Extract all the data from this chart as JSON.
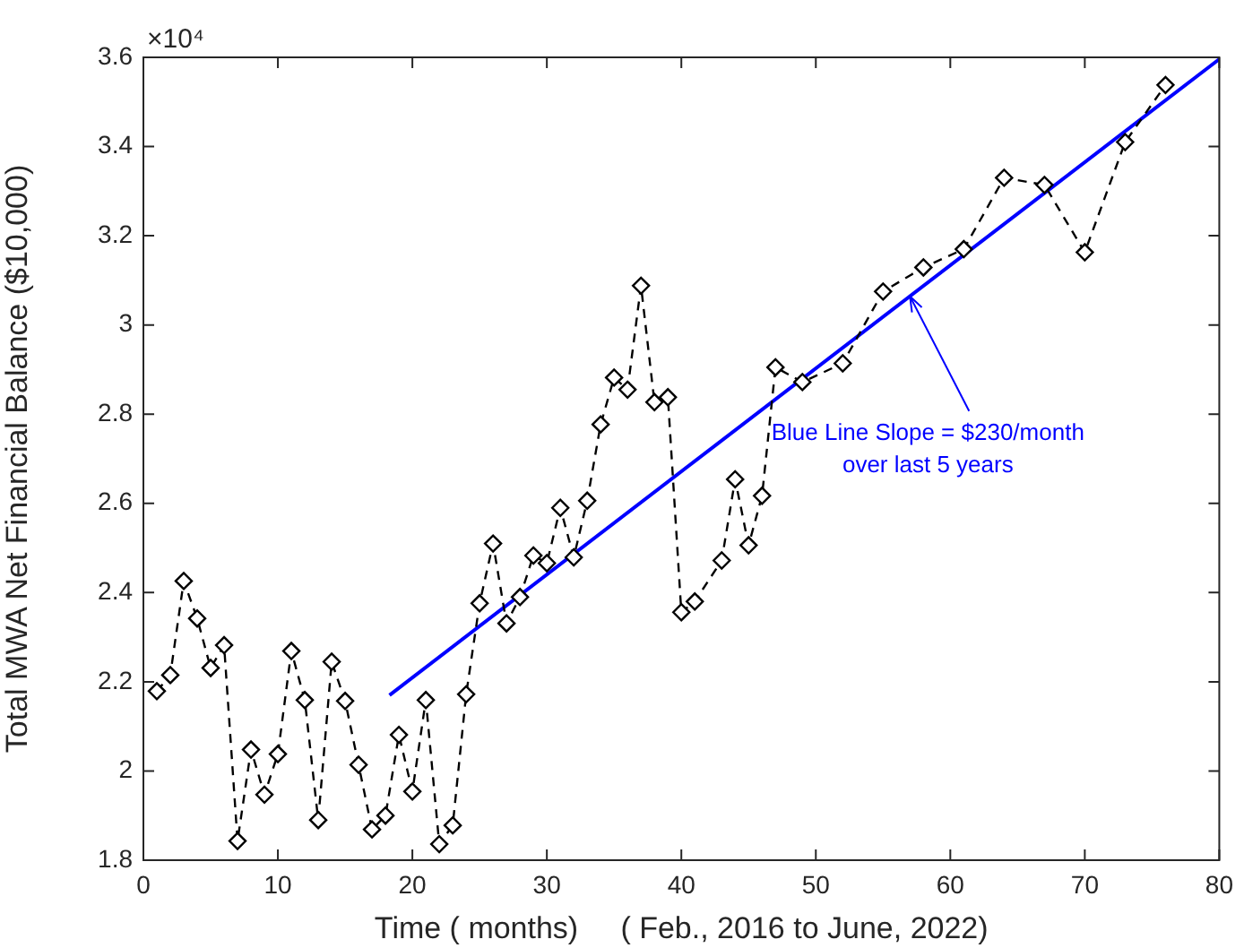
{
  "chart_data": {
    "type": "line",
    "xlabel": "Time ( months)     ( Feb., 2016 to June, 2022)",
    "ylabel": "Total MWA Net Financial Balance ($10,000)",
    "xlim": [
      0,
      80
    ],
    "xticks": [
      0,
      10,
      20,
      30,
      40,
      50,
      60,
      70,
      80
    ],
    "ylim": [
      1.8,
      3.6
    ],
    "yticks": [
      1.8,
      2,
      2.2,
      2.4,
      2.6,
      2.8,
      3,
      3.2,
      3.4,
      3.6
    ],
    "grid": false,
    "legend": false,
    "series": [
      {
        "color": "#000000",
        "marker": "diamond",
        "line_style": "dashed",
        "x": [
          1,
          2,
          3,
          4,
          5,
          6,
          7,
          8,
          9,
          10,
          11,
          12,
          13,
          14,
          15,
          16,
          17,
          18,
          19,
          20,
          21,
          22,
          23,
          24,
          25,
          26,
          27,
          28,
          29,
          30,
          31,
          32,
          33,
          34,
          35,
          36,
          37,
          38,
          39,
          40,
          41,
          43,
          44,
          45,
          46,
          47,
          49,
          52,
          55,
          58,
          61,
          64,
          67,
          70,
          73,
          76
        ],
        "values": [
          2.179,
          2.215,
          2.426,
          2.342,
          2.231,
          2.282,
          1.843,
          2.048,
          1.947,
          2.038,
          2.269,
          2.159,
          1.89,
          2.245,
          2.157,
          2.014,
          1.869,
          1.9,
          2.081,
          1.954,
          2.159,
          1.836,
          1.878,
          2.172,
          2.376,
          2.51,
          2.331,
          2.39,
          2.483,
          2.466,
          2.59,
          2.479,
          2.606,
          2.777,
          2.882,
          2.855,
          3.088,
          2.827,
          2.838,
          2.356,
          2.38,
          2.472,
          2.654,
          2.506,
          2.617,
          2.905,
          2.872,
          2.914,
          3.075,
          3.129,
          3.17,
          3.33,
          3.314,
          3.163,
          3.41,
          3.538
        ]
      },
      {
        "color": "#0000ff",
        "marker": "none",
        "line_style": "solid",
        "x": [
          18.3,
          80
        ],
        "values": [
          2.17,
          3.596
        ]
      }
    ],
    "annotations": [
      "×10⁴",
      {
        "text": "Blue Line Slope = $230/month\nover last 5 years",
        "x": 57,
        "y": 3.064
      }
    ]
  }
}
